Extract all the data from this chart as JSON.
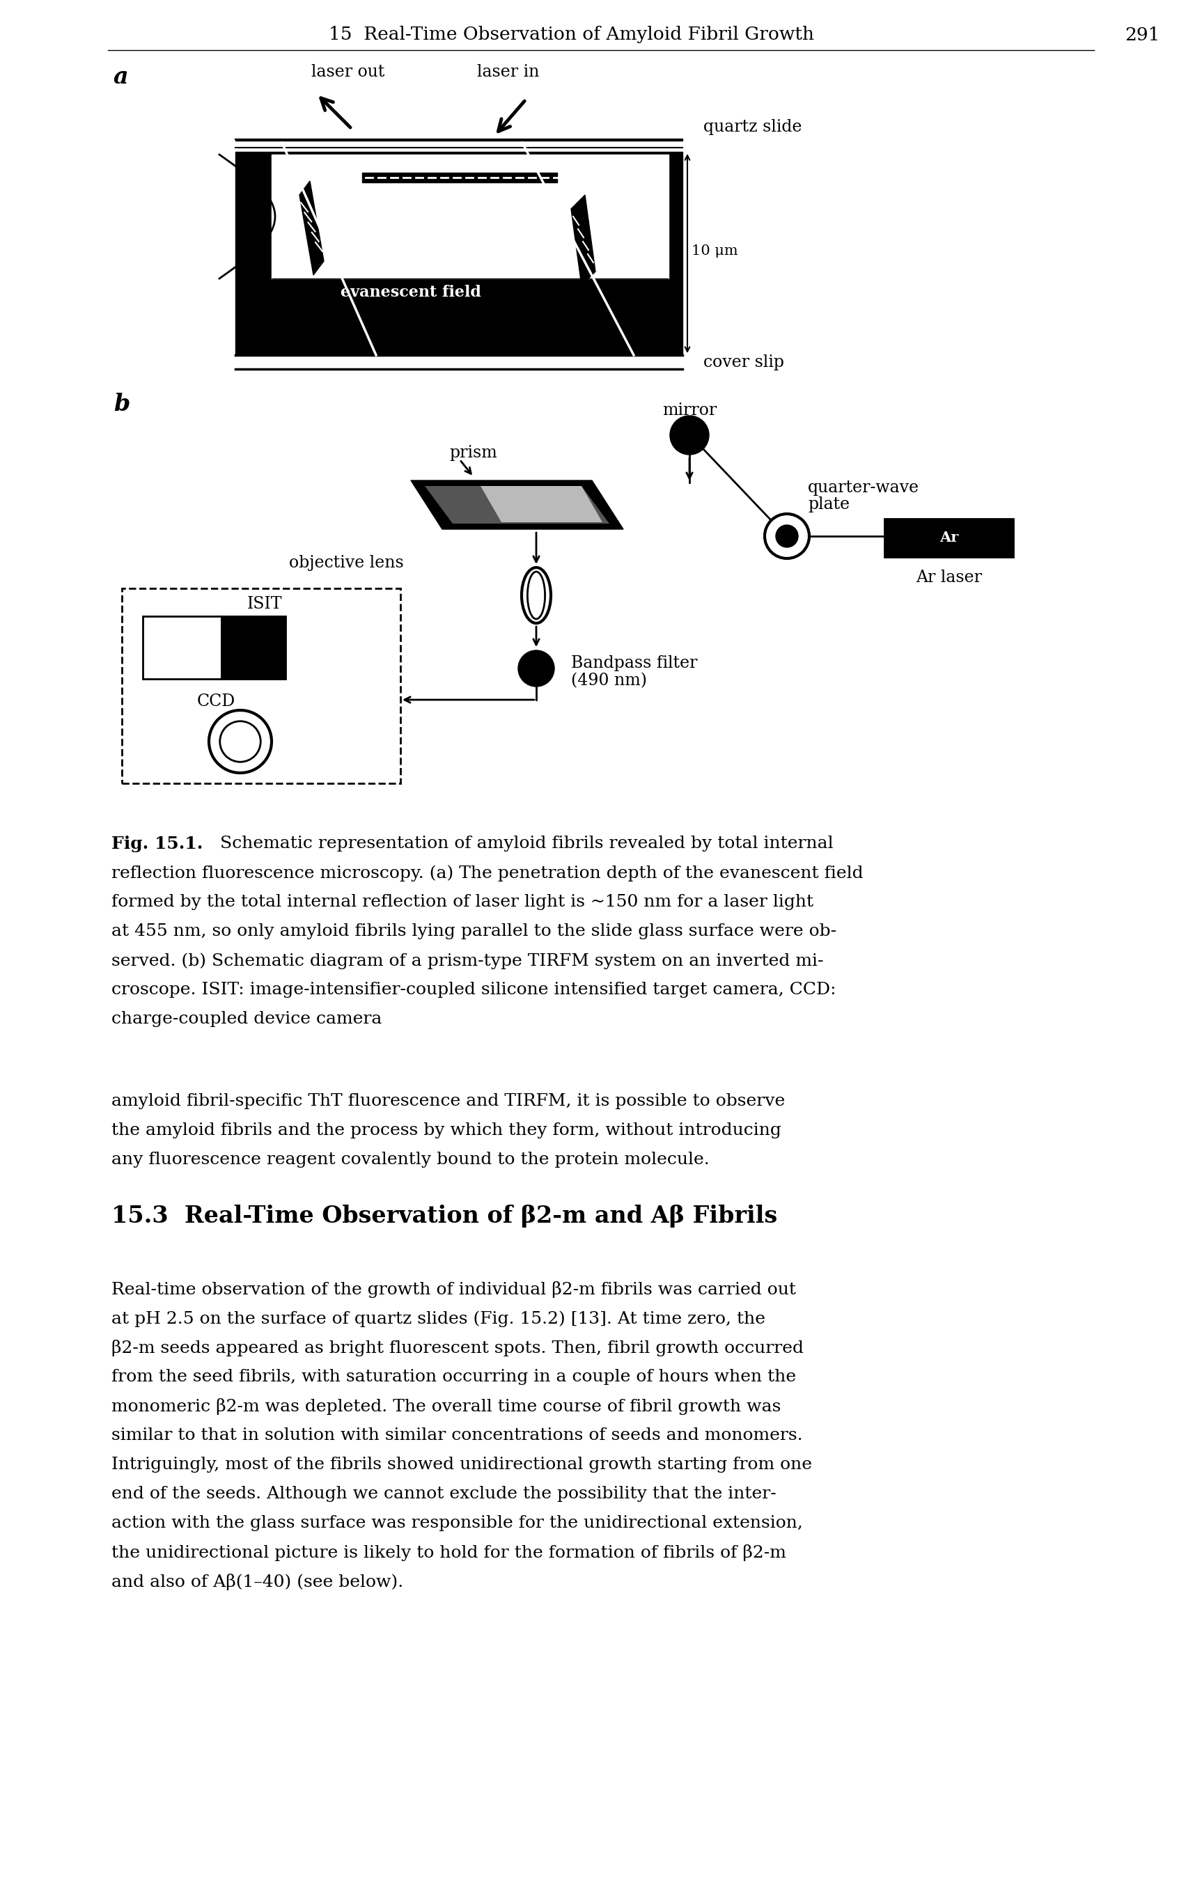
{
  "page_header": "15  Real-Time Observation of Amyloid Fibril Growth",
  "page_number": "291",
  "label_a": "a",
  "label_b": "b",
  "fig_caption_bold": "Fig. 15.1.",
  "fig_caption_rest_line1": " Schematic representation of amyloid fibrils revealed by total internal",
  "fig_caption_lines": [
    "reflection fluorescence microscopy. (a) The penetration depth of the evanescent field",
    "formed by the total internal reflection of laser light is ~150 nm for a laser light",
    "at 455 nm, so only amyloid fibrils lying parallel to the slide glass surface were ob-",
    "served. (b) Schematic diagram of a prism-type TIRFM system on an inverted mi-",
    "croscope. ISIT: image-intensifier-coupled silicone intensified target camera, CCD:",
    "charge-coupled device camera"
  ],
  "body_text_1_lines": [
    "amyloid fibril-specific ThT fluorescence and TIRFM, it is possible to observe",
    "the amyloid fibrils and the process by which they form, without introducing",
    "any fluorescence reagent covalently bound to the protein molecule."
  ],
  "section_heading": "15.3  Real-Time Observation of β2-m and Aβ Fibrils",
  "body_text_2_lines": [
    "Real-time observation of the growth of individual β2-m fibrils was carried out",
    "at pH 2.5 on the surface of quartz slides (Fig. 15.2) [13]. At time zero, the",
    "β2-m seeds appeared as bright fluorescent spots. Then, fibril growth occurred",
    "from the seed fibrils, with saturation occurring in a couple of hours when the",
    "monomeric β2-m was depleted. The overall time course of fibril growth was",
    "similar to that in solution with similar concentrations of seeds and monomers.",
    "Intriguingly, most of the fibrils showed unidirectional growth starting from one",
    "end of the seeds. Although we cannot exclude the possibility that the inter-",
    "action with the glass surface was responsible for the unidirectional extension,",
    "the unidirectional picture is likely to hold for the formation of fibrils of β2-m",
    "and also of Aβ(1–40) (see below)."
  ],
  "background_color": "#ffffff",
  "text_color": "#000000"
}
